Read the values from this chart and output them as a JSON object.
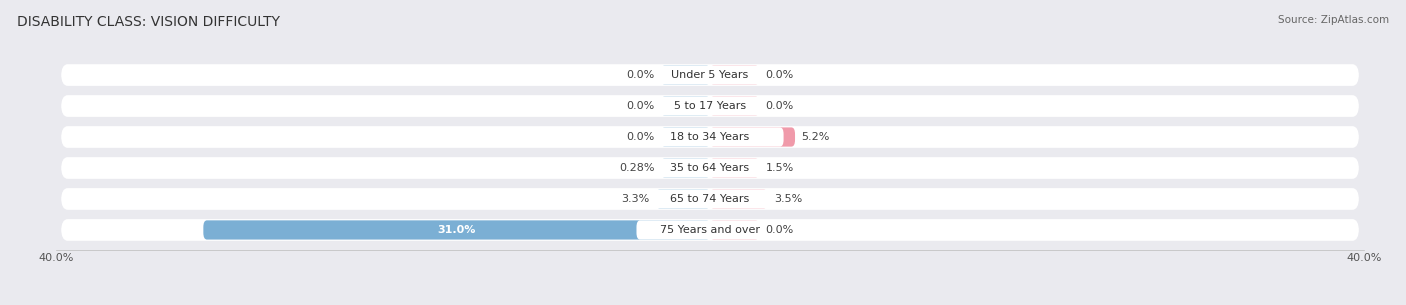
{
  "title": "DISABILITY CLASS: VISION DIFFICULTY",
  "source": "Source: ZipAtlas.com",
  "categories": [
    "Under 5 Years",
    "5 to 17 Years",
    "18 to 34 Years",
    "35 to 64 Years",
    "65 to 74 Years",
    "75 Years and over"
  ],
  "male_values": [
    0.0,
    0.0,
    0.0,
    0.28,
    3.3,
    31.0
  ],
  "female_values": [
    0.0,
    0.0,
    5.2,
    1.5,
    3.5,
    0.0
  ],
  "male_color": "#7bafd4",
  "female_color": "#f09aaa",
  "row_bg_color": "#ffffff",
  "fig_bg_color": "#eaeaef",
  "axis_limit": 40.0,
  "min_bar_visual": 3.0,
  "bar_height": 0.62,
  "title_fontsize": 10,
  "label_fontsize": 8,
  "tick_fontsize": 8,
  "category_fontsize": 8,
  "source_fontsize": 7.5
}
